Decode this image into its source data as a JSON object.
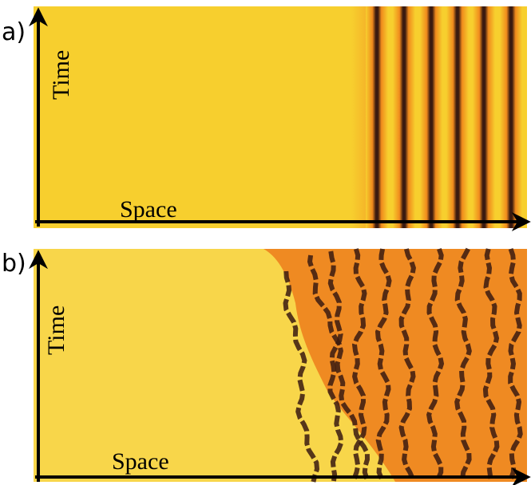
{
  "panels": [
    {
      "label": "a)",
      "x_axis": "Space",
      "y_axis": "Time"
    },
    {
      "label": "b)",
      "x_axis": "Space",
      "y_axis": "Time"
    }
  ]
}
